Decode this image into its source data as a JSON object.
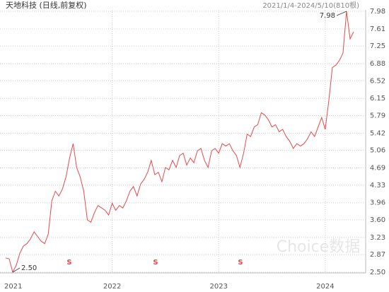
{
  "chart_data": {
    "type": "line",
    "title": "天地科技 (日线,前复权)",
    "subtitle": "2021/1/4-2024/5/10(810根)",
    "watermark": "Choice数据",
    "series": [
      {
        "name": "天地科技",
        "color": "#e8494a",
        "values": [
          2.8,
          2.78,
          2.5,
          2.65,
          2.9,
          3.05,
          3.1,
          3.2,
          3.35,
          3.25,
          3.15,
          3.1,
          3.3,
          4.0,
          4.2,
          4.1,
          4.25,
          4.5,
          4.9,
          5.2,
          4.7,
          4.5,
          4.2,
          3.6,
          3.55,
          3.75,
          3.9,
          3.85,
          3.8,
          3.7,
          3.95,
          3.8,
          3.9,
          3.85,
          4.0,
          4.2,
          4.3,
          4.1,
          4.35,
          4.45,
          4.6,
          4.85,
          4.55,
          4.6,
          4.4,
          4.7,
          4.65,
          4.85,
          4.7,
          4.95,
          5.0,
          4.75,
          4.9,
          4.8,
          5.05,
          5.1,
          4.85,
          4.7,
          5.05,
          5.1,
          5.0,
          5.2,
          5.15,
          5.2,
          5.05,
          4.95,
          4.7,
          5.0,
          5.4,
          5.35,
          5.55,
          5.6,
          5.85,
          5.8,
          5.7,
          5.55,
          5.6,
          5.45,
          5.5,
          5.35,
          5.25,
          5.1,
          5.2,
          5.15,
          5.2,
          5.3,
          5.45,
          5.35,
          5.55,
          5.75,
          5.5,
          6.1,
          6.8,
          6.85,
          6.95,
          7.1,
          7.98,
          7.4,
          7.55
        ]
      }
    ],
    "ylim": [
      2.5,
      7.98
    ],
    "yticks": [
      {
        "value": 2.5,
        "label": "2.50"
      },
      2.87,
      3.23,
      {
        "value": 3.6,
        "label": "3.60"
      },
      3.96,
      4.33,
      4.69,
      5.06,
      5.42,
      5.79,
      6.15,
      6.52,
      6.88,
      7.25,
      7.61,
      7.98
    ],
    "xticks": [
      {
        "value": 0,
        "label": "2021"
      },
      {
        "value": 30,
        "label": "2022"
      },
      {
        "value": 60,
        "label": "2023"
      },
      {
        "value": 90,
        "label": "2024"
      }
    ],
    "annotations": [
      {
        "text": "7.98",
        "index": 96
      },
      {
        "text": "2.50",
        "index": 2
      }
    ],
    "event_markers": [
      "S",
      "S",
      "S"
    ],
    "grid": true
  }
}
